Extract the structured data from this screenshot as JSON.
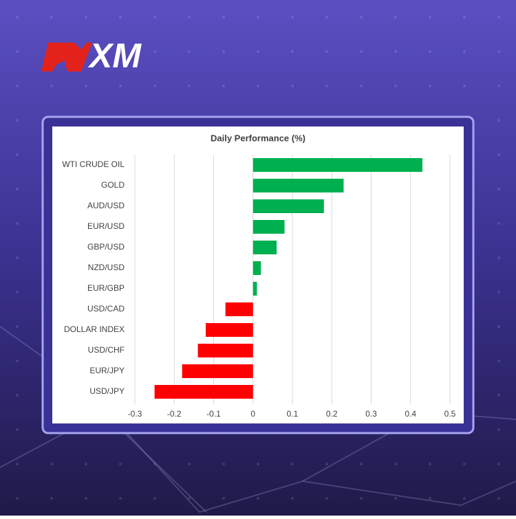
{
  "brand": "XM",
  "chart_data": {
    "type": "bar",
    "orientation": "horizontal",
    "title": "Daily Performance (%)",
    "categories": [
      "WTI CRUDE OIL",
      "GOLD",
      "AUD/USD",
      "EUR/USD",
      "GBP/USD",
      "NZD/USD",
      "EUR/GBP",
      "USD/CAD",
      "DOLLAR INDEX",
      "USD/CHF",
      "EUR/JPY",
      "USD/JPY"
    ],
    "values": [
      0.43,
      0.23,
      0.18,
      0.08,
      0.06,
      0.02,
      0.01,
      -0.07,
      -0.12,
      -0.14,
      -0.18,
      -0.25
    ],
    "positive_color": "#00b050",
    "negative_color": "#ff0000",
    "xlim": [
      -0.3,
      0.5
    ],
    "xticks": [
      -0.3,
      -0.2,
      -0.1,
      0,
      0.1,
      0.2,
      0.3,
      0.4,
      0.5
    ],
    "grid": true
  }
}
